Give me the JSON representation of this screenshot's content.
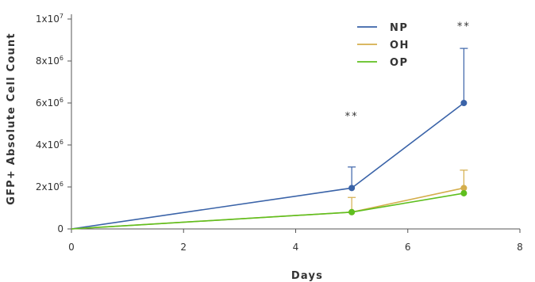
{
  "chart_data": {
    "type": "line",
    "xlabel": "Days",
    "ylabel": "GFP+ Absolute Cell Count",
    "xlim": [
      0,
      8
    ],
    "ylim": [
      0,
      10000000
    ],
    "x_ticks": [
      {
        "value": 0,
        "label": "0"
      },
      {
        "value": 2,
        "label": "2"
      },
      {
        "value": 4,
        "label": "4"
      },
      {
        "value": 6,
        "label": "6"
      },
      {
        "value": 8,
        "label": "8"
      }
    ],
    "y_ticks": [
      {
        "value": 0,
        "base": "0",
        "exp": ""
      },
      {
        "value": 2000000,
        "base": "2x10",
        "exp": "6"
      },
      {
        "value": 4000000,
        "base": "4x10",
        "exp": "6"
      },
      {
        "value": 6000000,
        "base": "6x10",
        "exp": "6"
      },
      {
        "value": 8000000,
        "base": "8x10",
        "exp": "6"
      },
      {
        "value": 10000000,
        "base": "1x10",
        "exp": "7"
      }
    ],
    "grid": false,
    "legend_position": "top-right",
    "series": [
      {
        "name": "NP",
        "color": "#3a63a8",
        "x": [
          0,
          5,
          7
        ],
        "y": [
          0,
          1950000,
          6000000
        ],
        "error_upper": [
          0,
          1000000,
          2600000
        ]
      },
      {
        "name": "OH",
        "color": "#d4ae4c",
        "x": [
          0,
          5,
          7
        ],
        "y": [
          0,
          800000,
          1950000
        ],
        "error_upper": [
          0,
          700000,
          850000
        ]
      },
      {
        "name": "OP",
        "color": "#5fbf1f",
        "x": [
          0,
          5,
          7
        ],
        "y": [
          0,
          800000,
          1700000
        ],
        "error_upper": [
          0,
          0,
          0
        ]
      }
    ],
    "annotations": [
      {
        "text": "**",
        "x": 5,
        "y": 5200000
      },
      {
        "text": "**",
        "x": 7,
        "y": 9500000
      }
    ]
  }
}
